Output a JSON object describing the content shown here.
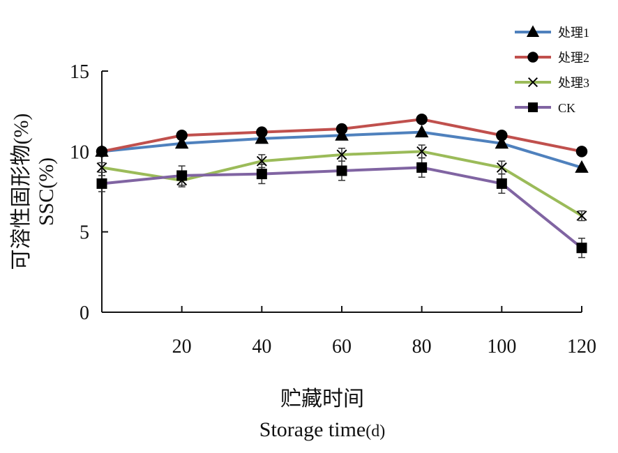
{
  "chart_data": {
    "type": "line",
    "x": [
      0,
      20,
      40,
      60,
      80,
      100,
      120
    ],
    "x_tick_labels": [
      "20",
      "40",
      "60",
      "80",
      "100",
      "120"
    ],
    "x_tick_values": [
      20,
      40,
      60,
      80,
      100,
      120
    ],
    "xlabel_cn": "贮藏时间",
    "xlabel_en": "Storage time",
    "xlabel_unit": "(d)",
    "ylabel_cn": "可溶性固形物(%)",
    "ylabel_en": "SSC(%)",
    "ylim": [
      0,
      15
    ],
    "xlim": [
      0,
      120
    ],
    "y_ticks": [
      0,
      5,
      10,
      15
    ],
    "y_tick_labels": [
      "0",
      "5",
      "10",
      "15"
    ],
    "grid": false,
    "legend_position": "top-right",
    "series": [
      {
        "name": "处理1",
        "color": "#4F81BD",
        "marker": "triangle",
        "values": [
          10.0,
          10.5,
          10.8,
          11.0,
          11.2,
          10.5,
          9.0
        ],
        "errors": [
          0,
          0,
          0,
          0,
          0,
          0,
          0
        ]
      },
      {
        "name": "处理2",
        "color": "#C0504D",
        "marker": "circle",
        "values": [
          10.0,
          11.0,
          11.2,
          11.4,
          12.0,
          11.0,
          10.0
        ],
        "errors": [
          0,
          0,
          0,
          0,
          0,
          0,
          0
        ]
      },
      {
        "name": "处理3",
        "color": "#9BBB59",
        "marker": "x",
        "values": [
          9.0,
          8.2,
          9.4,
          9.8,
          10.0,
          9.0,
          6.0
        ],
        "errors": [
          0.3,
          0.4,
          0.4,
          0.4,
          0.4,
          0.4,
          0.3
        ]
      },
      {
        "name": "CK",
        "color": "#8064A2",
        "marker": "square",
        "values": [
          8.0,
          8.5,
          8.6,
          8.8,
          9.0,
          8.0,
          4.0
        ],
        "errors": [
          0.5,
          0.6,
          0.6,
          0.6,
          0.6,
          0.6,
          0.6
        ]
      }
    ]
  }
}
